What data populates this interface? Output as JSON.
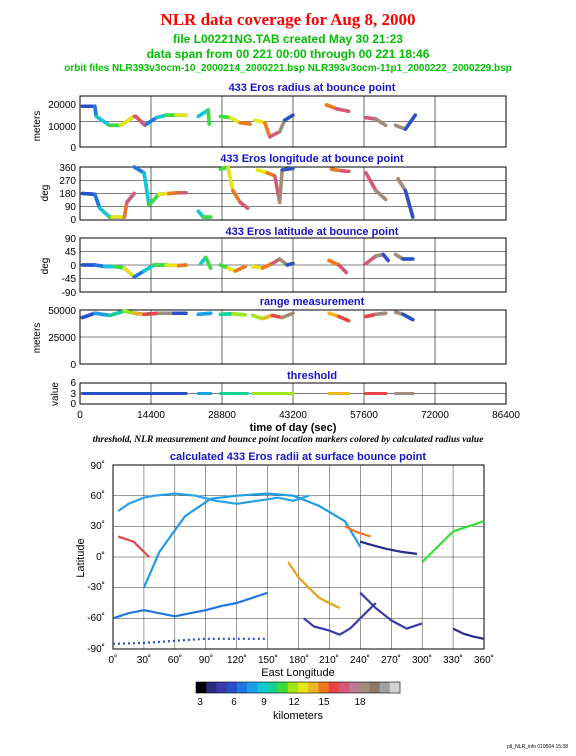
{
  "header": {
    "title": "NLR data coverage for Aug 8, 2000",
    "file_line": "file L00221NG.TAB created May 30 21:23",
    "span_line": "data span from 00 221 00:00 through 00 221 18:46",
    "orbit_line": "orbit files NLR393v3ocm-10_2000214_2000221.bsp NLR393v3ocm-11p1_2000222_2000229.bsp"
  },
  "caption": "threshold, NLR measurement and bounce point location markers colored by calculated radius value",
  "footer": "plt_NLR_info 010504 15:38",
  "colors": {
    "title": "#ff0000",
    "header": "#00c000",
    "panel_title": "#1414c8",
    "colorbar": [
      "#000000",
      "#2a2a7a",
      "#3a3aa8",
      "#2850c8",
      "#1e78e0",
      "#1aa0e8",
      "#14c8d2",
      "#14d296",
      "#3cdc3c",
      "#a0e614",
      "#e6e614",
      "#f0b41e",
      "#f0781e",
      "#e64646",
      "#d25a78",
      "#be7896",
      "#a08c7a",
      "#8c7864",
      "#a0a0a0",
      "#d2d2d2"
    ]
  },
  "time_axis": {
    "label": "time of day (sec)",
    "ticks": [
      "0",
      "14400",
      "28800",
      "43200",
      "57600",
      "72000",
      "86400"
    ]
  },
  "panels": [
    {
      "title": "433 Eros radius at bounce point",
      "ylabel": "meters",
      "yticks": [
        "20000",
        "10000",
        "0"
      ]
    },
    {
      "title": "433 Eros longitude at bounce point",
      "ylabel": "deg",
      "yticks": [
        "360",
        "270",
        "180",
        "90",
        "0"
      ]
    },
    {
      "title": "433 Eros latitude at bounce point",
      "ylabel": "deg",
      "yticks": [
        "90",
        "45",
        "0",
        "-45",
        "-90"
      ]
    },
    {
      "title": "range measurement",
      "ylabel": "meters",
      "yticks": [
        "50000",
        "25000",
        "0"
      ]
    },
    {
      "title": "threshold",
      "ylabel": "value",
      "yticks": [
        "6",
        "3",
        "0"
      ]
    }
  ],
  "map": {
    "title": "calculated 433 Eros radii at surface bounce point",
    "xlabel": "East Longitude",
    "ylabel": "Latitude",
    "xticks": [
      "0˚",
      "30˚",
      "60˚",
      "90˚",
      "120˚",
      "150˚",
      "180˚",
      "210˚",
      "240˚",
      "270˚",
      "300˚",
      "330˚",
      "360˚"
    ],
    "yticks": [
      "90˚",
      "60˚",
      "30˚",
      "0˚",
      "-30˚",
      "-60˚",
      "-90˚"
    ]
  },
  "colorbar": {
    "label": "kilometers",
    "ticks": [
      "3",
      "6",
      "9",
      "12",
      "15",
      "18"
    ]
  },
  "chart_data": [
    {
      "type": "line",
      "title": "433 Eros radius at bounce point",
      "xlabel": "time of day (sec)",
      "ylabel": "meters",
      "xlim": [
        0,
        86400
      ],
      "ylim": [
        0,
        20000
      ],
      "grid": true,
      "series": [
        {
          "x": [
            500,
            3000,
            3300,
            6000,
            8200,
            11000,
            11300,
            13200
          ],
          "y": [
            16000,
            16000,
            12000,
            8500,
            8500,
            12000,
            12000,
            8500
          ]
        },
        {
          "x": [
            13500,
            15500,
            17500,
            19500,
            21500
          ],
          "y": [
            9000,
            11500,
            12500,
            12500,
            12500
          ]
        },
        {
          "x": [
            24000,
            26000,
            26200
          ],
          "y": [
            12000,
            14500,
            9000
          ]
        },
        {
          "x": [
            28500,
            30500,
            32500,
            34500
          ],
          "y": [
            12000,
            11500,
            9500,
            9000
          ]
        },
        {
          "x": [
            35500,
            37500,
            38500,
            40500,
            41500,
            43200
          ],
          "y": [
            10500,
            9500,
            4000,
            6000,
            10500,
            12500
          ]
        },
        {
          "x": [
            50000,
            52000,
            54500
          ],
          "y": [
            16500,
            15000,
            14000
          ]
        },
        {
          "x": [
            58000,
            60000,
            62000
          ],
          "y": [
            11500,
            11000,
            8500
          ]
        },
        {
          "x": [
            64000,
            66000,
            68000
          ],
          "y": [
            8500,
            7000,
            12500
          ]
        }
      ]
    },
    {
      "type": "line",
      "title": "433 Eros longitude at bounce point",
      "xlabel": "time of day (sec)",
      "ylabel": "deg",
      "xlim": [
        0,
        86400
      ],
      "ylim": [
        0,
        360
      ],
      "grid": true,
      "series": [
        {
          "x": [
            500,
            3000,
            4000,
            6000,
            6500,
            9000,
            9500,
            11000
          ],
          "y": [
            180,
            175,
            80,
            20,
            20,
            20,
            120,
            180
          ]
        },
        {
          "x": [
            11000,
            13000,
            14000,
            16000,
            18000,
            20000,
            21500
          ],
          "y": [
            360,
            320,
            100,
            175,
            180,
            185,
            185
          ]
        },
        {
          "x": [
            24000,
            25000,
            26500
          ],
          "y": [
            60,
            20,
            20
          ]
        },
        {
          "x": [
            28500,
            30000,
            31000,
            32500,
            34000
          ],
          "y": [
            345,
            360,
            200,
            120,
            80
          ]
        },
        {
          "x": [
            36000,
            38000,
            39500,
            40500,
            41000,
            43200
          ],
          "y": [
            340,
            320,
            300,
            120,
            340,
            350
          ]
        },
        {
          "x": [
            51000,
            53000,
            54500
          ],
          "y": [
            345,
            335,
            330
          ]
        },
        {
          "x": [
            58000,
            60000,
            62000
          ],
          "y": [
            320,
            200,
            140
          ]
        },
        {
          "x": [
            64500,
            66000,
            67500
          ],
          "y": [
            280,
            200,
            20
          ]
        }
      ]
    },
    {
      "type": "line",
      "title": "433 Eros latitude at bounce point",
      "xlabel": "time of day (sec)",
      "ylabel": "deg",
      "xlim": [
        0,
        86400
      ],
      "ylim": [
        -90,
        90
      ],
      "grid": true,
      "series": [
        {
          "x": [
            500,
            3000,
            5000,
            7000,
            9000,
            11000
          ],
          "y": [
            0,
            0,
            -5,
            -5,
            -10,
            -40
          ]
        },
        {
          "x": [
            11000,
            13000,
            15000,
            17500,
            20000,
            21500
          ],
          "y": [
            -40,
            -20,
            0,
            0,
            -2,
            0
          ]
        },
        {
          "x": [
            24500,
            25500,
            26500
          ],
          "y": [
            5,
            25,
            -10
          ]
        },
        {
          "x": [
            28500,
            30000,
            31500,
            33500
          ],
          "y": [
            0,
            -10,
            -20,
            -5
          ]
        },
        {
          "x": [
            35000,
            37000,
            39000,
            40500,
            42000,
            43200
          ],
          "y": [
            -5,
            -10,
            5,
            20,
            0,
            5
          ]
        },
        {
          "x": [
            50500,
            52500,
            54000
          ],
          "y": [
            15,
            0,
            -25
          ]
        },
        {
          "x": [
            58000,
            60000,
            61500,
            62500
          ],
          "y": [
            5,
            30,
            35,
            15
          ]
        },
        {
          "x": [
            64000,
            65500,
            67500
          ],
          "y": [
            35,
            20,
            20
          ]
        }
      ]
    },
    {
      "type": "line",
      "title": "range measurement",
      "xlabel": "time of day (sec)",
      "ylabel": "meters",
      "xlim": [
        0,
        86400
      ],
      "ylim": [
        0,
        50000
      ],
      "grid": true,
      "series": [
        {
          "x": [
            500,
            3000,
            6000,
            9000,
            11000,
            13000,
            16000,
            19000,
            21500
          ],
          "y": [
            43000,
            47000,
            45000,
            49000,
            47000,
            46000,
            47000,
            47000,
            47000
          ]
        },
        {
          "x": [
            24000,
            26500
          ],
          "y": [
            46000,
            47000
          ]
        },
        {
          "x": [
            28500,
            31000,
            33500
          ],
          "y": [
            46000,
            46500,
            45500
          ]
        },
        {
          "x": [
            35000,
            37000,
            39000,
            41000,
            43200
          ],
          "y": [
            45000,
            42000,
            45000,
            43000,
            47000
          ]
        },
        {
          "x": [
            50500,
            52500,
            54500
          ],
          "y": [
            47000,
            44000,
            40000
          ]
        },
        {
          "x": [
            58000,
            60000,
            62000
          ],
          "y": [
            44000,
            46000,
            47000
          ]
        },
        {
          "x": [
            64000,
            65500,
            67500
          ],
          "y": [
            48000,
            46000,
            41000
          ]
        }
      ]
    },
    {
      "type": "scatter",
      "title": "threshold",
      "xlabel": "time of day (sec)",
      "ylabel": "value",
      "xlim": [
        0,
        86400
      ],
      "ylim": [
        0,
        6
      ],
      "grid": true,
      "series": [
        {
          "x": [
            500,
            21500
          ],
          "y": [
            3,
            3
          ]
        },
        {
          "x": [
            24000,
            26500
          ],
          "y": [
            3,
            3
          ]
        },
        {
          "x": [
            28500,
            34000
          ],
          "y": [
            3,
            3
          ]
        },
        {
          "x": [
            35000,
            43200
          ],
          "y": [
            3,
            3
          ]
        },
        {
          "x": [
            50500,
            54500
          ],
          "y": [
            3,
            3
          ]
        },
        {
          "x": [
            58000,
            62000
          ],
          "y": [
            3,
            3
          ]
        },
        {
          "x": [
            64000,
            67500
          ],
          "y": [
            3,
            3
          ]
        }
      ]
    },
    {
      "type": "scatter",
      "title": "calculated 433 Eros radii at surface bounce point",
      "xlabel": "East Longitude",
      "ylabel": "Latitude",
      "xlim": [
        0,
        360
      ],
      "ylim": [
        -90,
        90
      ],
      "grid": true,
      "series": [
        {
          "x": [
            30,
            45,
            70,
            95,
            120,
            150,
            175,
            200,
            225,
            240
          ],
          "y": [
            -30,
            5,
            40,
            57,
            60,
            62,
            60,
            50,
            35,
            10
          ]
        },
        {
          "x": [
            5,
            15,
            30,
            40,
            60,
            80,
            100,
            120,
            140,
            160,
            175,
            190
          ],
          "y": [
            45,
            52,
            58,
            60,
            62,
            60,
            55,
            52,
            55,
            58,
            55,
            60
          ]
        },
        {
          "x": [
            240,
            250,
            265,
            280,
            295
          ],
          "y": [
            15,
            12,
            8,
            5,
            3
          ]
        },
        {
          "x": [
            185,
            195,
            210,
            220,
            230,
            240,
            255
          ],
          "y": [
            -60,
            -68,
            -72,
            -76,
            -70,
            -60,
            -45
          ]
        },
        {
          "x": [
            170,
            180,
            190,
            200,
            210,
            220
          ],
          "y": [
            -5,
            -20,
            -30,
            -40,
            -45,
            -50
          ]
        },
        {
          "x": [
            240,
            255,
            270,
            285,
            300
          ],
          "y": [
            -35,
            -50,
            -62,
            -70,
            -65
          ]
        },
        {
          "x": [
            0,
            15,
            30,
            45,
            60,
            75,
            90,
            105,
            120,
            135,
            150
          ],
          "y": [
            -60,
            -55,
            -52,
            -55,
            -58,
            -55,
            -52,
            -48,
            -45,
            -40,
            -35
          ]
        },
        {
          "x": [
            0,
            30,
            60,
            90,
            120,
            150
          ],
          "y": [
            -85,
            -84,
            -82,
            -80,
            -80,
            -80
          ]
        },
        {
          "x": [
            300,
            310,
            320,
            330,
            345,
            360
          ],
          "y": [
            -5,
            5,
            15,
            25,
            30,
            35
          ]
        },
        {
          "x": [
            330,
            340,
            350,
            360
          ],
          "y": [
            -70,
            -75,
            -78,
            -80
          ]
        },
        {
          "x": [
            225,
            235,
            250
          ],
          "y": [
            30,
            25,
            20
          ]
        },
        {
          "x": [
            5,
            20,
            35
          ],
          "y": [
            20,
            15,
            0
          ]
        }
      ]
    }
  ]
}
